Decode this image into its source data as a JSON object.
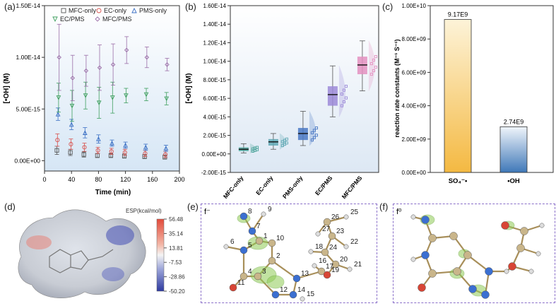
{
  "panels": {
    "a": {
      "letter": "(a)"
    },
    "b": {
      "letter": "(b)"
    },
    "c": {
      "letter": "(c)"
    },
    "d": {
      "letter": "(d)"
    },
    "e": {
      "letter": "(e)"
    },
    "f": {
      "letter": "(f)"
    }
  },
  "chart_data": [
    {
      "id": "a",
      "type": "scatter",
      "title": "",
      "xlabel": "Time (min)",
      "ylabel": "[•OH] (M)",
      "xlim": [
        0,
        200
      ],
      "ylim": [
        -1e-15,
        1.5e-14
      ],
      "xticks": [
        "0",
        "40",
        "80",
        "120",
        "160",
        "200"
      ],
      "xtick_minor": [
        "20",
        "60",
        "100",
        "140",
        "180"
      ],
      "yticks": [
        "0.00E+00",
        "5.00E-15",
        "1.00E-14",
        "1.50E-14"
      ],
      "legend": [
        "MFC-only",
        "EC-only",
        "PMS-only",
        "EC/PMS",
        "MFC/PMS"
      ],
      "x": [
        20,
        40,
        60,
        80,
        100,
        120,
        150,
        180
      ],
      "series": [
        {
          "name": "MFC-only",
          "color": "#555555",
          "marker": "square",
          "values": [
            1e-15,
            8e-16,
            6e-16,
            5e-16,
            5e-16,
            4.5e-16,
            4e-16,
            3.5e-16
          ],
          "err": [
            4e-16,
            3e-16,
            2.5e-16,
            2e-16,
            2e-16,
            2e-16,
            2e-16,
            2e-16
          ]
        },
        {
          "name": "EC-only",
          "color": "#d9534f",
          "marker": "circle",
          "values": [
            2e-15,
            1.6e-15,
            1.3e-15,
            1e-15,
            9e-16,
            8e-16,
            7e-16,
            6e-16
          ],
          "err": [
            6e-16,
            5e-16,
            4e-16,
            3e-16,
            3e-16,
            3e-16,
            3e-16,
            3e-16
          ]
        },
        {
          "name": "PMS-only",
          "color": "#3a6fc4",
          "marker": "triangle",
          "values": [
            4.5e-15,
            3.5e-15,
            2.7e-15,
            2.1e-15,
            1.7e-15,
            1.5e-15,
            1.3e-15,
            1.2e-15
          ],
          "err": [
            6e-16,
            5e-16,
            5e-16,
            4e-16,
            3e-16,
            3e-16,
            3e-16,
            3e-16
          ]
        },
        {
          "name": "EC/PMS",
          "color": "#3f9f5f",
          "marker": "triangle-down",
          "values": [
            6.1e-15,
            5.3e-15,
            6.3e-15,
            5.6e-15,
            6.1e-15,
            6.3e-15,
            6.4e-15,
            6e-15
          ],
          "err": [
            1.4e-15,
            1.5e-15,
            1.3e-15,
            1.5e-15,
            1.5e-15,
            7e-16,
            6e-16,
            6e-16
          ]
        },
        {
          "name": "MFC/PMS",
          "color": "#9b6fa8",
          "marker": "diamond",
          "values": [
            1e-14,
            8e-15,
            8.7e-15,
            9e-15,
            9.3e-15,
            1.07e-14,
            1e-14,
            9.3e-15
          ],
          "err": [
            3.2e-15,
            2.2e-15,
            1.5e-15,
            2.2e-15,
            2e-15,
            1.3e-15,
            1e-15,
            6e-16
          ]
        }
      ]
    },
    {
      "id": "b",
      "type": "box",
      "title": "",
      "xlabel": "",
      "ylabel": "[•OH] (M)",
      "ylim": [
        -2e-15,
        1.6e-14
      ],
      "yticks": [
        "-2.00E-15",
        "0.00E+00",
        "2.00E-15",
        "4.00E-15",
        "6.00E-15",
        "8.00E-15",
        "1.00E-14",
        "1.20E-14",
        "1.40E-14",
        "1.60E-14"
      ],
      "categories": [
        "MFC-only",
        "EC-only",
        "PMS-only",
        "EC/PMS",
        "MFC/PMS"
      ],
      "series": [
        {
          "name": "MFC-only",
          "color": "#4aa39a",
          "q1": 3e-16,
          "median": 5e-16,
          "q3": 7e-16,
          "min": 1e-16,
          "max": 1.1e-15
        },
        {
          "name": "EC-only",
          "color": "#5fa8b4",
          "q1": 9e-16,
          "median": 1.3e-15,
          "q3": 1.6e-15,
          "min": 5e-16,
          "max": 2.2e-15
        },
        {
          "name": "PMS-only",
          "color": "#4a78c4",
          "q1": 1.5e-15,
          "median": 2.2e-15,
          "q3": 2.8e-15,
          "min": 9e-16,
          "max": 4.6e-15
        },
        {
          "name": "EC/PMS",
          "color": "#9c8ad8",
          "q1": 5.2e-15,
          "median": 6.4e-15,
          "q3": 7.3e-15,
          "min": 4e-15,
          "max": 9.5e-15
        },
        {
          "name": "MFC/PMS",
          "color": "#e491c0",
          "q1": 8.6e-15,
          "median": 9.6e-15,
          "q3": 1.05e-14,
          "min": 6.8e-15,
          "max": 1.22e-14
        }
      ]
    },
    {
      "id": "c",
      "type": "bar",
      "title": "",
      "xlabel": "",
      "ylabel": "reaction rate constants (M⁻¹ S⁻¹)",
      "ylim": [
        0,
        10000000000.0
      ],
      "yticks": [
        "0.00E+00",
        "2.00E+09",
        "4.00E+09",
        "6.00E+09",
        "8.00E+09",
        "1.00E+10"
      ],
      "categories": [
        "SO₄⁻•",
        "•OH"
      ],
      "values": [
        9170000000.0,
        2740000000.0
      ],
      "labels": [
        "9.17E9",
        "2.74E9"
      ],
      "colors": [
        "#f4b942",
        "#3f78b8"
      ]
    }
  ],
  "esp": {
    "title": "ESP(kcal/mol)",
    "ticks": [
      "56.48",
      "35.14",
      "13.81",
      "-7.53",
      "-28.86",
      "-50.20"
    ]
  },
  "mol_e": {
    "label": "f⁻",
    "atoms": [
      "8",
      "9",
      "26",
      "25",
      "27",
      "7",
      "1",
      "10",
      "23",
      "22",
      "6",
      "5",
      "24",
      "18",
      "2",
      "16",
      "20",
      "4",
      "3",
      "17",
      "19",
      "21",
      "11",
      "13",
      "12",
      "14",
      "15"
    ]
  },
  "mol_f": {
    "label": "f⁰"
  }
}
